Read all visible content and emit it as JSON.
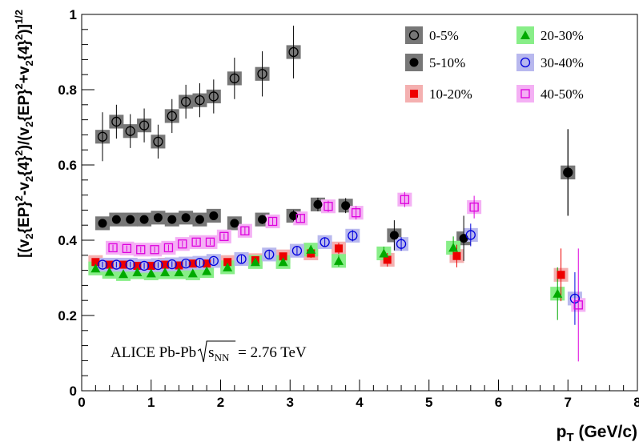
{
  "chart_data": {
    "type": "scatter",
    "title": "",
    "xlabel": {
      "main": "p",
      "sub": "T",
      "rest": " (GeV/c)"
    },
    "ylabel": {
      "parts": [
        {
          "t": "[(v"
        },
        {
          "t": "2",
          "s": "sub"
        },
        {
          "t": "{EP}"
        },
        {
          "t": "2",
          "s": "sup"
        },
        {
          "t": "-v"
        },
        {
          "t": "2",
          "s": "sub"
        },
        {
          "t": "{4}"
        },
        {
          "t": "2",
          "s": "sup"
        },
        {
          "t": ")/(v"
        },
        {
          "t": "2",
          "s": "sub"
        },
        {
          "t": "{EP}"
        },
        {
          "t": "2",
          "s": "sup"
        },
        {
          "t": "+v"
        },
        {
          "t": "2",
          "s": "sub"
        },
        {
          "t": "{4}"
        },
        {
          "t": "2",
          "s": "sup"
        },
        {
          "t": ")]"
        },
        {
          "t": "1/2",
          "s": "sup"
        }
      ]
    },
    "xlim": [
      0,
      8
    ],
    "ylim": [
      0,
      1
    ],
    "x_ticks": [
      0,
      1,
      2,
      3,
      4,
      5,
      6,
      7,
      8
    ],
    "y_ticks": [
      0,
      0.2,
      0.4,
      0.6,
      0.8,
      1
    ],
    "x_tick_labels": [
      "0",
      "1",
      "2",
      "3",
      "4",
      "5",
      "6",
      "7",
      "8"
    ],
    "y_tick_labels": [
      "0",
      "0.2",
      "0.4",
      "0.6",
      "0.8",
      "1"
    ],
    "grid": false,
    "legend_position": "top-right",
    "annotation": {
      "prefix": "ALICE Pb-Pb ",
      "radicand": "s",
      "radicand_sub": "NN",
      "suffix": " = 2.76 TeV"
    },
    "series": [
      {
        "name": "0-5%",
        "marker": "circle-open",
        "color": "#000000",
        "box_color": "#777777",
        "x": [
          0.3,
          0.5,
          0.7,
          0.9,
          1.1,
          1.3,
          1.5,
          1.7,
          1.9,
          2.2,
          2.6,
          3.05,
          7.0
        ],
        "y": [
          0.675,
          0.715,
          0.69,
          0.705,
          0.662,
          0.73,
          0.768,
          0.772,
          0.782,
          0.83,
          0.842,
          0.9,
          0.58
        ],
        "err": [
          0.065,
          0.045,
          0.045,
          0.045,
          0.045,
          0.045,
          0.045,
          0.045,
          0.045,
          0.055,
          0.06,
          0.07,
          0.115
        ]
      },
      {
        "name": "5-10%",
        "marker": "circle-filled",
        "color": "#000000",
        "box_color": "#777777",
        "x": [
          0.3,
          0.5,
          0.7,
          0.9,
          1.1,
          1.3,
          1.5,
          1.7,
          1.9,
          2.2,
          2.6,
          3.05,
          3.4,
          3.8,
          4.5,
          5.5,
          7.0
        ],
        "y": [
          0.445,
          0.455,
          0.455,
          0.455,
          0.46,
          0.455,
          0.46,
          0.455,
          0.465,
          0.445,
          0.455,
          0.465,
          0.495,
          0.492,
          0.413,
          0.405,
          0.58
        ],
        "err": [
          0.01,
          0.01,
          0.01,
          0.01,
          0.01,
          0.01,
          0.01,
          0.01,
          0.01,
          0.01,
          0.012,
          0.015,
          0.018,
          0.02,
          0.04,
          0.06,
          0.115
        ]
      },
      {
        "name": "10-20%",
        "marker": "square-filled",
        "color": "#ee0000",
        "box_color": "#f4b0b0",
        "x": [
          0.2,
          0.4,
          0.6,
          0.8,
          1.0,
          1.2,
          1.4,
          1.6,
          1.8,
          2.1,
          2.5,
          2.9,
          3.3,
          3.7,
          4.4,
          5.4,
          6.9
        ],
        "y": [
          0.342,
          0.335,
          0.335,
          0.332,
          0.332,
          0.335,
          0.333,
          0.338,
          0.338,
          0.342,
          0.347,
          0.357,
          0.365,
          0.378,
          0.348,
          0.358,
          0.308
        ],
        "err": [
          0.008,
          0.008,
          0.008,
          0.008,
          0.008,
          0.008,
          0.008,
          0.008,
          0.008,
          0.01,
          0.01,
          0.01,
          0.012,
          0.015,
          0.018,
          0.03,
          0.07
        ]
      },
      {
        "name": "20-30%",
        "marker": "triangle-filled",
        "color": "#00aa00",
        "box_color": "#88ee88",
        "x": [
          0.2,
          0.4,
          0.6,
          0.8,
          1.0,
          1.2,
          1.4,
          1.6,
          1.8,
          2.1,
          2.5,
          2.9,
          3.3,
          3.7,
          4.35,
          5.35,
          6.85
        ],
        "y": [
          0.325,
          0.316,
          0.31,
          0.315,
          0.312,
          0.315,
          0.315,
          0.312,
          0.318,
          0.328,
          0.342,
          0.342,
          0.375,
          0.345,
          0.365,
          0.38,
          0.258
        ],
        "err": [
          0.008,
          0.008,
          0.008,
          0.008,
          0.008,
          0.008,
          0.008,
          0.008,
          0.008,
          0.01,
          0.01,
          0.01,
          0.012,
          0.015,
          0.018,
          0.03,
          0.07
        ]
      },
      {
        "name": "30-40%",
        "marker": "circle-open",
        "color": "#0000dd",
        "box_color": "#b8b8ee",
        "x": [
          0.3,
          0.5,
          0.7,
          0.9,
          1.1,
          1.3,
          1.5,
          1.7,
          1.9,
          2.3,
          2.7,
          3.1,
          3.5,
          3.9,
          4.6,
          5.6,
          7.1
        ],
        "y": [
          0.335,
          0.335,
          0.335,
          0.332,
          0.334,
          0.336,
          0.338,
          0.34,
          0.345,
          0.35,
          0.362,
          0.372,
          0.395,
          0.412,
          0.39,
          0.414,
          0.245
        ],
        "err": [
          0.008,
          0.008,
          0.008,
          0.008,
          0.008,
          0.008,
          0.008,
          0.008,
          0.008,
          0.01,
          0.01,
          0.01,
          0.012,
          0.015,
          0.018,
          0.03,
          0.07
        ]
      },
      {
        "name": "40-50%",
        "marker": "square-open",
        "color": "#dd00dd",
        "box_color": "#f4b0f4",
        "x": [
          0.45,
          0.65,
          0.85,
          1.05,
          1.25,
          1.45,
          1.65,
          1.85,
          2.05,
          2.35,
          2.75,
          3.15,
          3.55,
          3.95,
          4.65,
          5.65,
          7.15
        ],
        "y": [
          0.38,
          0.378,
          0.375,
          0.375,
          0.38,
          0.39,
          0.395,
          0.395,
          0.41,
          0.425,
          0.45,
          0.458,
          0.49,
          0.473,
          0.508,
          0.488,
          0.228
        ],
        "err": [
          0.008,
          0.008,
          0.008,
          0.008,
          0.008,
          0.008,
          0.008,
          0.008,
          0.008,
          0.01,
          0.01,
          0.01,
          0.015,
          0.018,
          0.02,
          0.03,
          0.15
        ]
      }
    ]
  }
}
